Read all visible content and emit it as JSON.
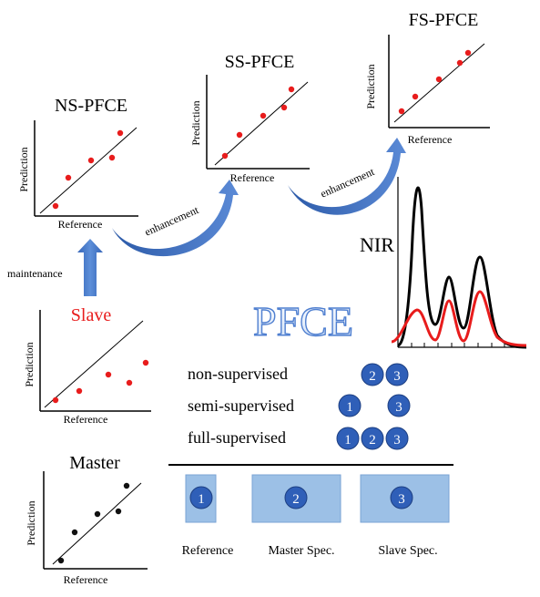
{
  "plots": {
    "ns": {
      "title": "NS-PFCE",
      "ylabel": "Prediction",
      "xlabel": "Reference"
    },
    "ss": {
      "title": "SS-PFCE",
      "ylabel": "Prediction",
      "xlabel": "Reference"
    },
    "fs": {
      "title": "FS-PFCE",
      "ylabel": "Prediction",
      "xlabel": "Reference"
    },
    "slave": {
      "title": "Slave",
      "ylabel": "Prediction",
      "xlabel": "Reference"
    },
    "master": {
      "title": "Master",
      "ylabel": "Prediction",
      "xlabel": "Reference"
    }
  },
  "arrows": {
    "enhancement_1": "enhancement",
    "enhancement_2": "enhancement",
    "maintenance": "maintenance"
  },
  "nir_label": "NIR",
  "center_title": "PFCE",
  "modes": [
    {
      "label": "non-supervised",
      "badges": [
        "2",
        "3"
      ]
    },
    {
      "label": "semi-supervised",
      "badges": [
        "1",
        "3"
      ]
    },
    {
      "label": "full-supervised",
      "badges": [
        "1",
        "2",
        "3"
      ]
    }
  ],
  "legend": [
    {
      "number": "1",
      "label": "Reference"
    },
    {
      "number": "2",
      "label": "Master Spec."
    },
    {
      "number": "3",
      "label": "Slave Spec."
    }
  ],
  "colors": {
    "dot_red": "#e81c1c",
    "dot_black": "#111111",
    "slave_title": "#e81c1c",
    "arrow_blue": "#3f6fc4",
    "badge_blue": "#2f5fb8",
    "legend_box": "#9cc0e6",
    "nir_black": "#000000",
    "nir_red": "#e81c1c"
  }
}
